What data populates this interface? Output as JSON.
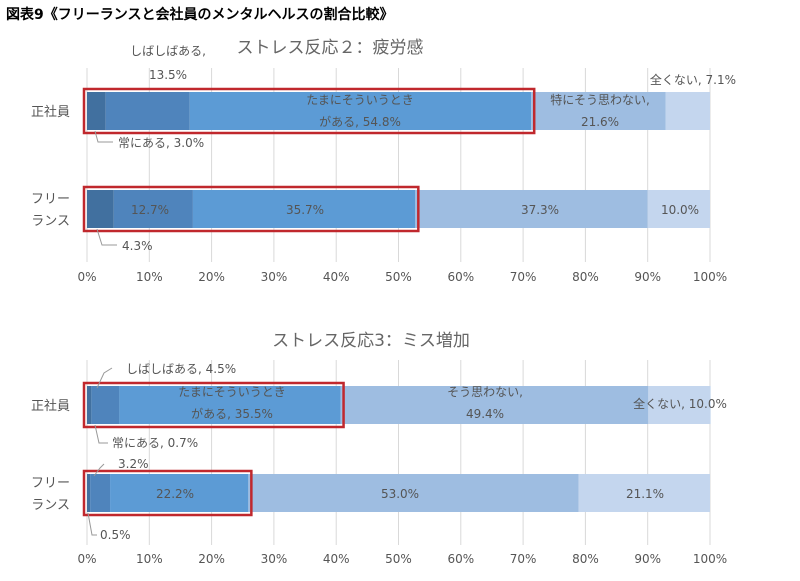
{
  "figure_title": "図表9《フリーランスと会社員のメンタルヘルスの割合比較》",
  "colors": {
    "segments": [
      "#41709f",
      "#4f84bc",
      "#5c9bd5",
      "#9ebde1",
      "#c4d6ee"
    ],
    "highlight_box": "#c0282d",
    "grid": "#d9d9d9",
    "text": "#595959"
  },
  "chart_data": [
    {
      "type": "bar",
      "orientation": "horizontal-stacked-100",
      "title": "ストレス反応２：疲労感",
      "categories": [
        "正社員",
        "フリーランス"
      ],
      "category_labels": [
        [
          "正社員"
        ],
        [
          "フリー",
          "ランス"
        ]
      ],
      "series_names": [
        "常にある",
        "しばしばある",
        "たまにそういうときがある",
        "そう思わない",
        "全くない"
      ],
      "values": [
        [
          3.0,
          13.5,
          54.8,
          21.6,
          7.1
        ],
        [
          4.3,
          12.7,
          35.7,
          37.3,
          10.0
        ]
      ],
      "data_labels": [
        [
          [
            "常にある, 3.0%"
          ],
          [
            "しばしばある,",
            "13.5%"
          ],
          [
            "たまにそういうとき",
            "がある, 54.8%"
          ],
          [
            "特にそう思わない,",
            "21.6%"
          ],
          [
            "全くない, 7.1%"
          ]
        ],
        [
          [
            "4.3%"
          ],
          [
            "12.7%"
          ],
          [
            "35.7%"
          ],
          [
            "37.3%"
          ],
          [
            "10.0%"
          ]
        ]
      ],
      "highlighted_segments": 3,
      "xlim": [
        0,
        100
      ],
      "xticks": [
        "0%",
        "10%",
        "20%",
        "30%",
        "40%",
        "50%",
        "60%",
        "70%",
        "80%",
        "90%",
        "100%"
      ],
      "grid": true
    },
    {
      "type": "bar",
      "orientation": "horizontal-stacked-100",
      "title": "ストレス反応3：ミス増加",
      "categories": [
        "正社員",
        "フリーランス"
      ],
      "category_labels": [
        [
          "正社員"
        ],
        [
          "フリー",
          "ランス"
        ]
      ],
      "series_names": [
        "常にある",
        "しばしばある",
        "たまにそういうときがある",
        "そう思わない",
        "全くない"
      ],
      "values": [
        [
          0.7,
          4.5,
          35.5,
          49.4,
          10.0
        ],
        [
          0.5,
          3.2,
          22.2,
          53.0,
          21.1
        ]
      ],
      "data_labels": [
        [
          [
            "常にある, 0.7%"
          ],
          [
            "しばしばある, 4.5%"
          ],
          [
            "たまにそういうとき",
            "がある, 35.5%"
          ],
          [
            "そう思わない,",
            "49.4%"
          ],
          [
            "全くない, 10.0%"
          ]
        ],
        [
          [
            "0.5%"
          ],
          [
            "3.2%"
          ],
          [
            "22.2%"
          ],
          [
            "53.0%"
          ],
          [
            "21.1%"
          ]
        ]
      ],
      "highlighted_segments": 3,
      "xlim": [
        0,
        100
      ],
      "xticks": [
        "0%",
        "10%",
        "20%",
        "30%",
        "40%",
        "50%",
        "60%",
        "70%",
        "80%",
        "90%",
        "100%"
      ],
      "grid": true
    }
  ]
}
